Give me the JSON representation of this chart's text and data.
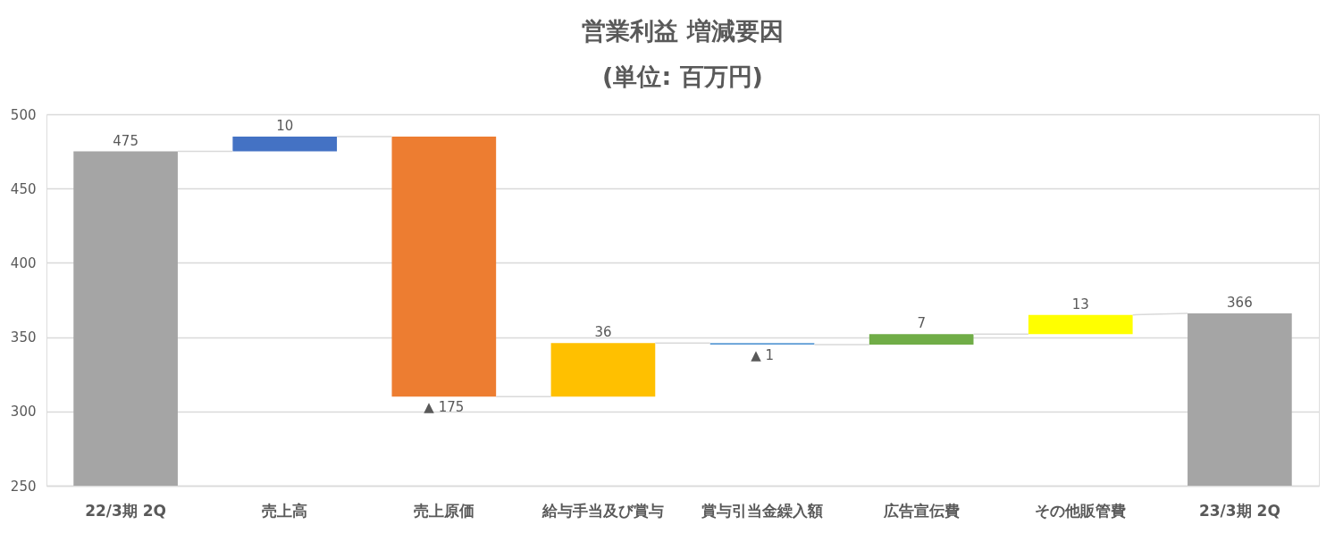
{
  "chart_data": {
    "type": "bar",
    "title": "営業利益 増減要因",
    "subtitle": "(単位: 百万円)",
    "categories": [
      "22/3期 2Q",
      "売上高",
      "売上原価",
      "給与手当及び賞与",
      "賞与引当金繰入額",
      "広告宣伝費",
      "その他販管費",
      "23/3期 2Q"
    ],
    "values": [
      475,
      10,
      -175,
      36,
      -1,
      7,
      13,
      366
    ],
    "base": [
      null,
      475,
      485,
      310,
      346,
      345,
      352,
      null
    ],
    "colors": [
      "#a5a5a5",
      "#4472c4",
      "#ed7d31",
      "#ffc000",
      "#5b9bd5",
      "#70ad47",
      "#ffff00",
      "#a5a5a5"
    ],
    "value_labels": [
      "475",
      "10",
      "▲ 175",
      "36",
      "▲ 1",
      "7",
      "13",
      "366"
    ],
    "ylim": [
      250,
      500
    ],
    "yticks": [
      250,
      300,
      350,
      400,
      450,
      500
    ],
    "grid": "y"
  }
}
